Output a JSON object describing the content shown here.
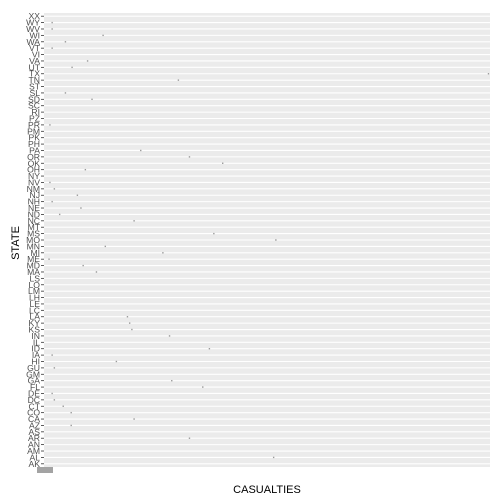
{
  "chart_data": {
    "type": "scatter",
    "xlabel": "CASUALTIES",
    "ylabel": "STATE",
    "grid": true,
    "legend": "none",
    "colors": {
      "panel": "#ebebeb",
      "gridline": "#ffffff",
      "point": "#9a9a9a",
      "text": "#4d4d4d"
    },
    "xlim": [
      0,
      1000
    ],
    "categories": [
      "AK",
      "AL",
      "AM",
      "AN",
      "AR",
      "AS",
      "AZ",
      "CA",
      "CO",
      "CT",
      "DC",
      "DE",
      "FL",
      "GA",
      "GM",
      "GU",
      "HI",
      "IA",
      "ID",
      "IL",
      "IN",
      "KS",
      "KY",
      "LA",
      "LC",
      "LE",
      "LH",
      "LM",
      "LO",
      "LS",
      "MA",
      "MD",
      "ME",
      "MI",
      "MN",
      "MO",
      "MS",
      "MT",
      "NC",
      "ND",
      "NE",
      "NH",
      "NJ",
      "NM",
      "NV",
      "NY",
      "OH",
      "OK",
      "OR",
      "PA",
      "PH",
      "PK",
      "PM",
      "PR",
      "PZ",
      "RI",
      "SC",
      "SD",
      "SL",
      "ST",
      "TN",
      "TX",
      "UT",
      "VA",
      "VI",
      "VT",
      "WA",
      "WI",
      "WV",
      "WY",
      "XX"
    ],
    "points": [
      {
        "state": "AL",
        "x": 515
      },
      {
        "state": "AR",
        "x": 325
      },
      {
        "state": "AZ",
        "x": 58
      },
      {
        "state": "CA",
        "x": 200
      },
      {
        "state": "CO",
        "x": 58
      },
      {
        "state": "CT",
        "x": 40
      },
      {
        "state": "DC",
        "x": 20
      },
      {
        "state": "DE",
        "x": 15
      },
      {
        "state": "FL",
        "x": 355
      },
      {
        "state": "GA",
        "x": 285
      },
      {
        "state": "GU",
        "x": 20
      },
      {
        "state": "HI",
        "x": 160
      },
      {
        "state": "IA",
        "x": 15
      },
      {
        "state": "ID",
        "x": 370
      },
      {
        "state": "IN",
        "x": 280
      },
      {
        "state": "KS",
        "x": 195
      },
      {
        "state": "KY",
        "x": 190
      },
      {
        "state": "LA",
        "x": 185
      },
      {
        "state": "MA",
        "x": 115
      },
      {
        "state": "MD",
        "x": 85
      },
      {
        "state": "ME",
        "x": 8
      },
      {
        "state": "MI",
        "x": 265
      },
      {
        "state": "MN",
        "x": 135
      },
      {
        "state": "MO",
        "x": 520
      },
      {
        "state": "MS",
        "x": 380
      },
      {
        "state": "NC",
        "x": 200
      },
      {
        "state": "ND",
        "x": 32
      },
      {
        "state": "NE",
        "x": 80
      },
      {
        "state": "NH",
        "x": 15
      },
      {
        "state": "NJ",
        "x": 72
      },
      {
        "state": "NM",
        "x": 20
      },
      {
        "state": "NV",
        "x": 10
      },
      {
        "state": "OH",
        "x": 90
      },
      {
        "state": "OK",
        "x": 400
      },
      {
        "state": "OR",
        "x": 325
      },
      {
        "state": "PA",
        "x": 215
      },
      {
        "state": "PR",
        "x": 10
      },
      {
        "state": "SD",
        "x": 105
      },
      {
        "state": "SL",
        "x": 45
      },
      {
        "state": "TN",
        "x": 300
      },
      {
        "state": "TX",
        "x": 1000
      },
      {
        "state": "UT",
        "x": 60
      },
      {
        "state": "VA",
        "x": 95
      },
      {
        "state": "VT",
        "x": 15
      },
      {
        "state": "WA",
        "x": 45
      },
      {
        "state": "WI",
        "x": 130
      },
      {
        "state": "WV",
        "x": 15
      },
      {
        "state": "WY",
        "x": 15
      }
    ]
  }
}
